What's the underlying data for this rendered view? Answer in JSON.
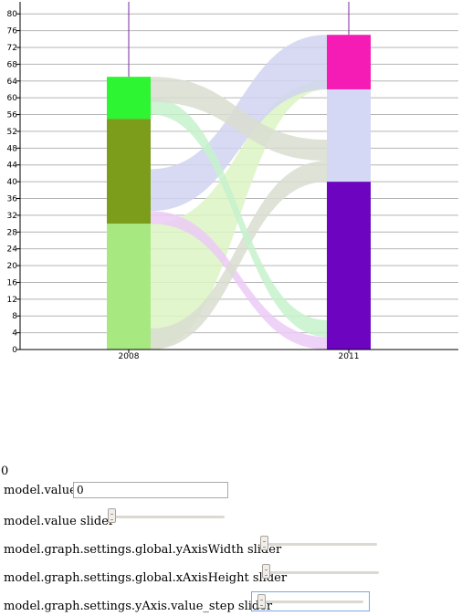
{
  "chart_data": {
    "type": "stacked-bar-flow",
    "categories": [
      "2008",
      "2011"
    ],
    "ylim": [
      0,
      82
    ],
    "y_ticks": [
      0,
      4,
      8,
      12,
      16,
      20,
      24,
      28,
      32,
      36,
      40,
      44,
      48,
      52,
      56,
      60,
      64,
      68,
      72,
      76,
      80
    ],
    "grid": true,
    "bars": [
      {
        "category": "2008",
        "segments": [
          {
            "value": 30,
            "color": "#a8e880"
          },
          {
            "value": 25,
            "color": "#7c9c1c"
          },
          {
            "value": 10,
            "color": "#2ef532"
          }
        ]
      },
      {
        "category": "2011",
        "segments": [
          {
            "value": 40,
            "color": "#6c04c0"
          },
          {
            "value": 22,
            "color": "#d4d8f4"
          },
          {
            "value": 13,
            "color": "#f41cb4"
          }
        ]
      }
    ],
    "flows": [
      {
        "from": [
          0,
          30
        ],
        "to": [
          62,
          64
        ],
        "color": "#dcf4c4"
      },
      {
        "from": [
          30,
          33
        ],
        "to": [
          0,
          3
        ],
        "color": "#eccaf6"
      },
      {
        "from": [
          33,
          43
        ],
        "to": [
          62,
          75
        ],
        "color": "#d0d3f0"
      },
      {
        "from": [
          0,
          5
        ],
        "to": [
          40,
          45
        ],
        "color": "#d9ddd0"
      },
      {
        "from": [
          56,
          60
        ],
        "to": [
          3,
          7
        ],
        "color": "#c6f2cc"
      },
      {
        "from": [
          59,
          65
        ],
        "to": [
          45,
          50
        ],
        "color": "#d9ddd0"
      }
    ]
  },
  "controls": {
    "readout": "0",
    "value_label": "model.value",
    "value_input": "0",
    "sliders": [
      {
        "label": "model.value slider",
        "fraction": 0.0
      },
      {
        "label": "model.graph.settings.global.yAxisWidth slider",
        "fraction": 0.0
      },
      {
        "label": "model.graph.settings.global.xAxisHeight slider",
        "fraction": 0.0
      },
      {
        "label": "model.graph.settings.yAxis.value_step slider",
        "fraction": 0.0
      }
    ]
  }
}
